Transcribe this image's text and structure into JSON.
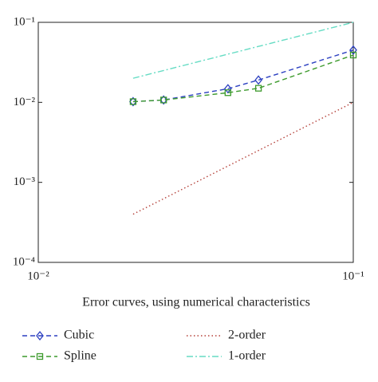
{
  "chart_data": {
    "type": "line",
    "x_label": "Error curves, using numerical characteristics",
    "log_x": true,
    "log_y": true,
    "xlim": [
      0.01,
      0.1
    ],
    "ylim": [
      0.0001,
      0.1
    ],
    "xticks": [
      {
        "value": 0.01,
        "label": "10⁻²"
      },
      {
        "value": 0.1,
        "label": "10⁻¹"
      }
    ],
    "yticks": [
      {
        "value": 0.0001,
        "label": "10⁻⁴"
      },
      {
        "value": 0.001,
        "label": "10⁻³"
      },
      {
        "value": 0.01,
        "label": "10⁻²"
      },
      {
        "value": 0.1,
        "label": "10⁻¹"
      }
    ],
    "series": [
      {
        "name": "Cubic",
        "color": "#2b3fc0",
        "dash": "6,4",
        "marker": "diamond",
        "x": [
          0.02,
          0.025,
          0.04,
          0.05,
          0.1
        ],
        "values": [
          0.0102,
          0.0107,
          0.0148,
          0.019,
          0.045
        ]
      },
      {
        "name": "Spline",
        "color": "#3c9a2c",
        "dash": "6,4",
        "marker": "square",
        "x": [
          0.02,
          0.025,
          0.04,
          0.05,
          0.1
        ],
        "values": [
          0.0102,
          0.0107,
          0.0132,
          0.015,
          0.039
        ]
      },
      {
        "name": "2-order",
        "color": "#b5413a",
        "dash": "1.5,3",
        "marker": "none",
        "x": [
          0.02,
          0.1
        ],
        "values": [
          0.0004,
          0.01
        ]
      },
      {
        "name": "1-order",
        "color": "#66dcc4",
        "dash": "8,3,2,3",
        "marker": "none",
        "x": [
          0.02,
          0.1
        ],
        "values": [
          0.02,
          0.1
        ]
      }
    ]
  }
}
